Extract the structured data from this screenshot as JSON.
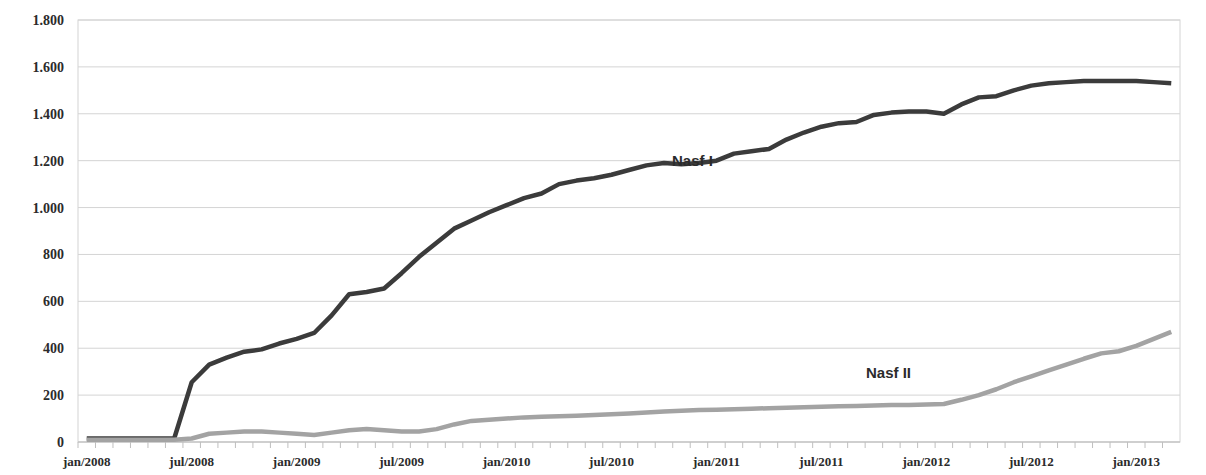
{
  "chart_data": {
    "type": "line",
    "categories": [
      "jan/2008",
      null,
      null,
      null,
      null,
      null,
      "jul/2008",
      null,
      null,
      null,
      null,
      null,
      "jan/2009",
      null,
      null,
      null,
      null,
      null,
      "jul/2009",
      null,
      null,
      null,
      null,
      null,
      "jan/2010",
      null,
      null,
      null,
      null,
      null,
      "jul/2010",
      null,
      null,
      null,
      null,
      null,
      "jan/2011",
      null,
      null,
      null,
      null,
      null,
      "jul/2011",
      null,
      null,
      null,
      null,
      null,
      "jan/2012",
      null,
      null,
      null,
      null,
      null,
      "jul/2012",
      null,
      null,
      null,
      null,
      null,
      "jan/2013",
      null,
      null
    ],
    "series": [
      {
        "name": "Nasf I",
        "color": "#3b3b3b",
        "values": [
          15,
          15,
          15,
          15,
          15,
          15,
          255,
          330,
          360,
          385,
          395,
          420,
          440,
          465,
          540,
          630,
          640,
          655,
          720,
          790,
          850,
          910,
          945,
          980,
          1010,
          1040,
          1060,
          1100,
          1115,
          1125,
          1140,
          1160,
          1180,
          1190,
          1185,
          1190,
          1200,
          1230,
          1240,
          1250,
          1290,
          1320,
          1345,
          1360,
          1365,
          1395,
          1405,
          1410,
          1410,
          1400,
          1440,
          1470,
          1475,
          1500,
          1520,
          1530,
          1535,
          1540,
          1540,
          1540,
          1540,
          1535,
          1530
        ]
      },
      {
        "name": "Nasf II",
        "color": "#a3a3a3",
        "values": [
          10,
          10,
          10,
          10,
          10,
          10,
          15,
          35,
          40,
          45,
          45,
          40,
          35,
          30,
          40,
          50,
          55,
          50,
          45,
          45,
          55,
          75,
          90,
          95,
          100,
          105,
          108,
          110,
          112,
          115,
          118,
          122,
          126,
          130,
          133,
          136,
          138,
          140,
          142,
          144,
          146,
          148,
          150,
          152,
          154,
          156,
          158,
          158,
          160,
          162,
          180,
          200,
          225,
          255,
          280,
          305,
          330,
          355,
          378,
          387,
          410,
          440,
          470
        ]
      }
    ],
    "ylim": [
      0,
      1800
    ],
    "yticks": [
      0,
      200,
      400,
      600,
      800,
      {
        "value": 1000,
        "label": "1.000"
      },
      {
        "value": 1200,
        "label": "1.200"
      },
      {
        "value": 1400,
        "label": "1.400"
      },
      {
        "value": 1600,
        "label": "1.600"
      },
      {
        "value": 1800,
        "label": "1.800"
      }
    ],
    "grid": true
  }
}
